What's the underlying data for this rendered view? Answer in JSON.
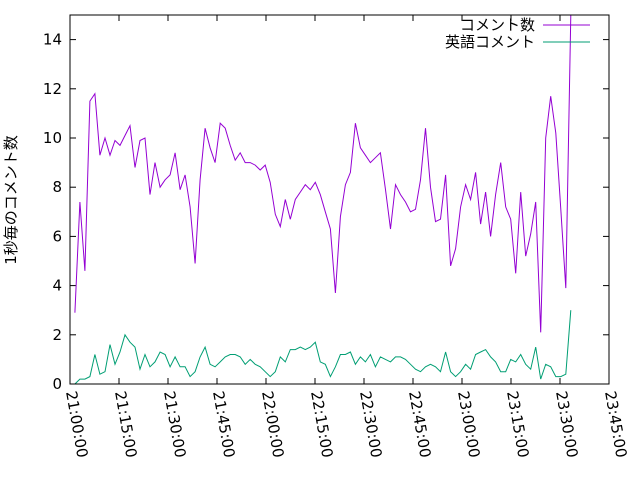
{
  "chart_data": {
    "type": "line",
    "y_label": "1秒毎のコメント数",
    "x": [
      "21:01:30",
      "21:03:02",
      "21:04:34",
      "21:06:06",
      "21:07:38",
      "21:09:10",
      "21:10:42",
      "21:12:14",
      "21:13:46",
      "21:15:18",
      "21:16:50",
      "21:18:22",
      "21:19:54",
      "21:21:26",
      "21:22:58",
      "21:24:30",
      "21:26:02",
      "21:27:34",
      "21:29:06",
      "21:30:38",
      "21:32:10",
      "21:33:42",
      "21:35:14",
      "21:36:46",
      "21:38:18",
      "21:39:50",
      "21:41:22",
      "21:42:54",
      "21:44:26",
      "21:45:58",
      "21:47:30",
      "21:49:02",
      "21:50:34",
      "21:52:06",
      "21:53:38",
      "21:55:10",
      "21:56:42",
      "21:58:14",
      "21:59:46",
      "22:01:18",
      "22:02:50",
      "22:04:22",
      "22:05:54",
      "22:07:26",
      "22:08:58",
      "22:10:30",
      "22:12:02",
      "22:13:34",
      "22:15:06",
      "22:16:38",
      "22:18:10",
      "22:19:42",
      "22:21:14",
      "22:22:46",
      "22:24:18",
      "22:25:50",
      "22:27:22",
      "22:28:54",
      "22:30:26",
      "22:31:58",
      "22:33:30",
      "22:35:02",
      "22:36:34",
      "22:38:06",
      "22:39:38",
      "22:41:10",
      "22:42:42",
      "22:44:14",
      "22:45:46",
      "22:47:18",
      "22:48:50",
      "22:50:22",
      "22:51:54",
      "22:53:26",
      "22:54:58",
      "22:56:30",
      "22:58:02",
      "22:59:34",
      "23:01:06",
      "23:02:38",
      "23:04:10",
      "23:05:42",
      "23:07:14",
      "23:08:46",
      "23:10:18",
      "23:11:50",
      "23:13:22",
      "23:14:54",
      "23:16:26",
      "23:17:58",
      "23:19:30",
      "23:21:02",
      "23:22:34",
      "23:24:06",
      "23:25:38",
      "23:27:10",
      "23:28:42",
      "23:30:14",
      "23:31:46",
      "23:33:18"
    ],
    "series": [
      {
        "name": "コメント数",
        "color": "#9400d3",
        "values": [
          2.9,
          7.4,
          4.6,
          11.5,
          11.8,
          9.3,
          10.0,
          9.3,
          9.9,
          9.7,
          10.1,
          10.5,
          8.8,
          9.9,
          10.0,
          7.7,
          9.0,
          8.0,
          8.3,
          8.5,
          9.4,
          7.9,
          8.5,
          7.2,
          4.9,
          8.3,
          10.4,
          9.6,
          9.0,
          10.6,
          10.4,
          9.7,
          9.1,
          9.4,
          9.0,
          9.0,
          8.9,
          8.7,
          8.9,
          8.2,
          6.9,
          6.4,
          7.5,
          6.7,
          7.5,
          7.8,
          8.1,
          7.9,
          8.2,
          7.7,
          7.0,
          6.3,
          3.7,
          6.8,
          8.1,
          8.6,
          10.6,
          9.6,
          9.3,
          9.0,
          9.2,
          9.4,
          7.9,
          6.3,
          8.1,
          7.7,
          7.4,
          7.0,
          7.1,
          8.3,
          10.4,
          8.0,
          6.6,
          6.7,
          8.5,
          4.8,
          5.5,
          7.2,
          8.1,
          7.5,
          8.6,
          6.5,
          7.8,
          6.0,
          7.7,
          9.0,
          7.2,
          6.7,
          4.5,
          7.8,
          5.2,
          6.1,
          7.4,
          2.1,
          10.0,
          11.7,
          10.2,
          7.1,
          3.9,
          15
        ]
      },
      {
        "name": "英語コメント",
        "color": "#009e73",
        "values": [
          0,
          0.2,
          0.2,
          0.3,
          1.2,
          0.4,
          0.5,
          1.6,
          0.8,
          1.3,
          2.0,
          1.7,
          1.5,
          0.6,
          1.2,
          0.7,
          0.9,
          1.3,
          1.2,
          0.7,
          1.1,
          0.7,
          0.7,
          0.3,
          0.5,
          1.1,
          1.5,
          0.8,
          0.7,
          0.9,
          1.1,
          1.2,
          1.2,
          1.1,
          0.8,
          1.0,
          0.8,
          0.7,
          0.5,
          0.3,
          0.5,
          1.1,
          0.9,
          1.4,
          1.4,
          1.5,
          1.4,
          1.5,
          1.7,
          0.9,
          0.8,
          0.3,
          0.7,
          1.2,
          1.2,
          1.3,
          0.8,
          1.1,
          0.9,
          1.2,
          0.7,
          1.1,
          1.0,
          0.9,
          1.1,
          1.1,
          1.0,
          0.8,
          0.6,
          0.5,
          0.7,
          0.8,
          0.7,
          0.5,
          1.3,
          0.5,
          0.3,
          0.5,
          0.8,
          0.6,
          1.2,
          1.3,
          1.4,
          1.1,
          0.9,
          0.5,
          0.5,
          1.0,
          0.9,
          1.2,
          0.8,
          0.6,
          1.5,
          0.2,
          0.8,
          0.7,
          0.3,
          0.3,
          0.4,
          3.0
        ]
      }
    ],
    "xlim": [
      "21:00:00",
      "23:45:00"
    ],
    "xticks": [
      "21:00:00",
      "21:15:00",
      "21:30:00",
      "21:45:00",
      "22:00:00",
      "22:15:00",
      "22:30:00",
      "22:45:00",
      "23:00:00",
      "23:15:00",
      "23:30:00",
      "23:45:00"
    ],
    "ylim": [
      0,
      15
    ],
    "yticks": [
      0,
      2,
      4,
      6,
      8,
      10,
      12,
      14
    ],
    "legend": "top-right"
  }
}
